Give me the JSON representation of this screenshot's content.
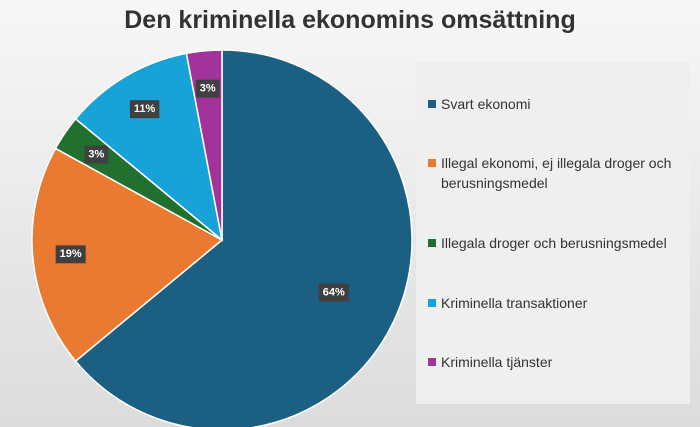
{
  "chart_data": {
    "type": "pie",
    "title": "Den kriminella ekonomins omsättning",
    "categories": [
      "Svart ekonomi",
      "Illegal ekonomi, ej illegala droger och berusningsmedel",
      "Illegala droger och berusningsmedel",
      "Kriminella transaktioner",
      "Kriminella tjänster"
    ],
    "values": [
      64,
      19,
      3,
      11,
      3
    ],
    "value_labels": [
      "64%",
      "19%",
      "3%",
      "11%",
      "3%"
    ],
    "colors": [
      "#1b5f82",
      "#ea7a31",
      "#22702f",
      "#18a3d8",
      "#a2339b"
    ],
    "legend": "right"
  }
}
